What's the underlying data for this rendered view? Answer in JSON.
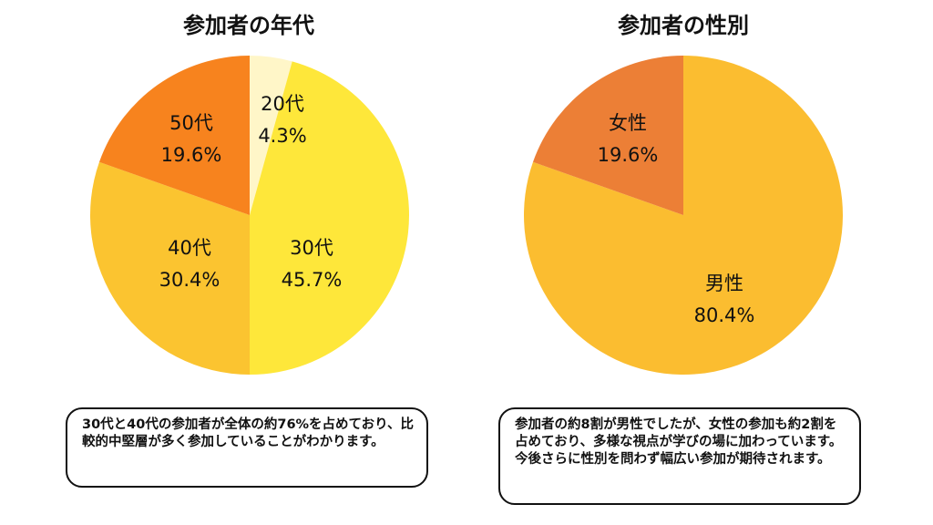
{
  "chart_data": [
    {
      "type": "pie",
      "title": "参加者の年代",
      "slices": [
        {
          "label": "20代",
          "value_label": "4.3%",
          "value": 4.3,
          "color": "#FFF6C8"
        },
        {
          "label": "30代",
          "value_label": "45.7%",
          "value": 45.7,
          "color": "#FEE73A"
        },
        {
          "label": "40代",
          "value_label": "30.4%",
          "value": 30.4,
          "color": "#FBC430"
        },
        {
          "label": "50代",
          "value_label": "19.6%",
          "value": 19.6,
          "color": "#F7831E"
        }
      ],
      "note": "30代と40代の参加者が全体の約76%を占めており、比較的中堅層が多く参加していることがわかります。"
    },
    {
      "type": "pie",
      "title": "参加者の性別",
      "slices": [
        {
          "label": "男性",
          "value_label": "80.4%",
          "value": 80.4,
          "color": "#FBBD30"
        },
        {
          "label": "女性",
          "value_label": "19.6%",
          "value": 19.6,
          "color": "#EC7F36"
        }
      ],
      "note": "参加者の約8割が男性でしたが、女性の参加も約2割を占めており、多様な視点が学びの場に加わっています。今後さらに性別を問わず幅広い参加が期待されます。"
    }
  ]
}
